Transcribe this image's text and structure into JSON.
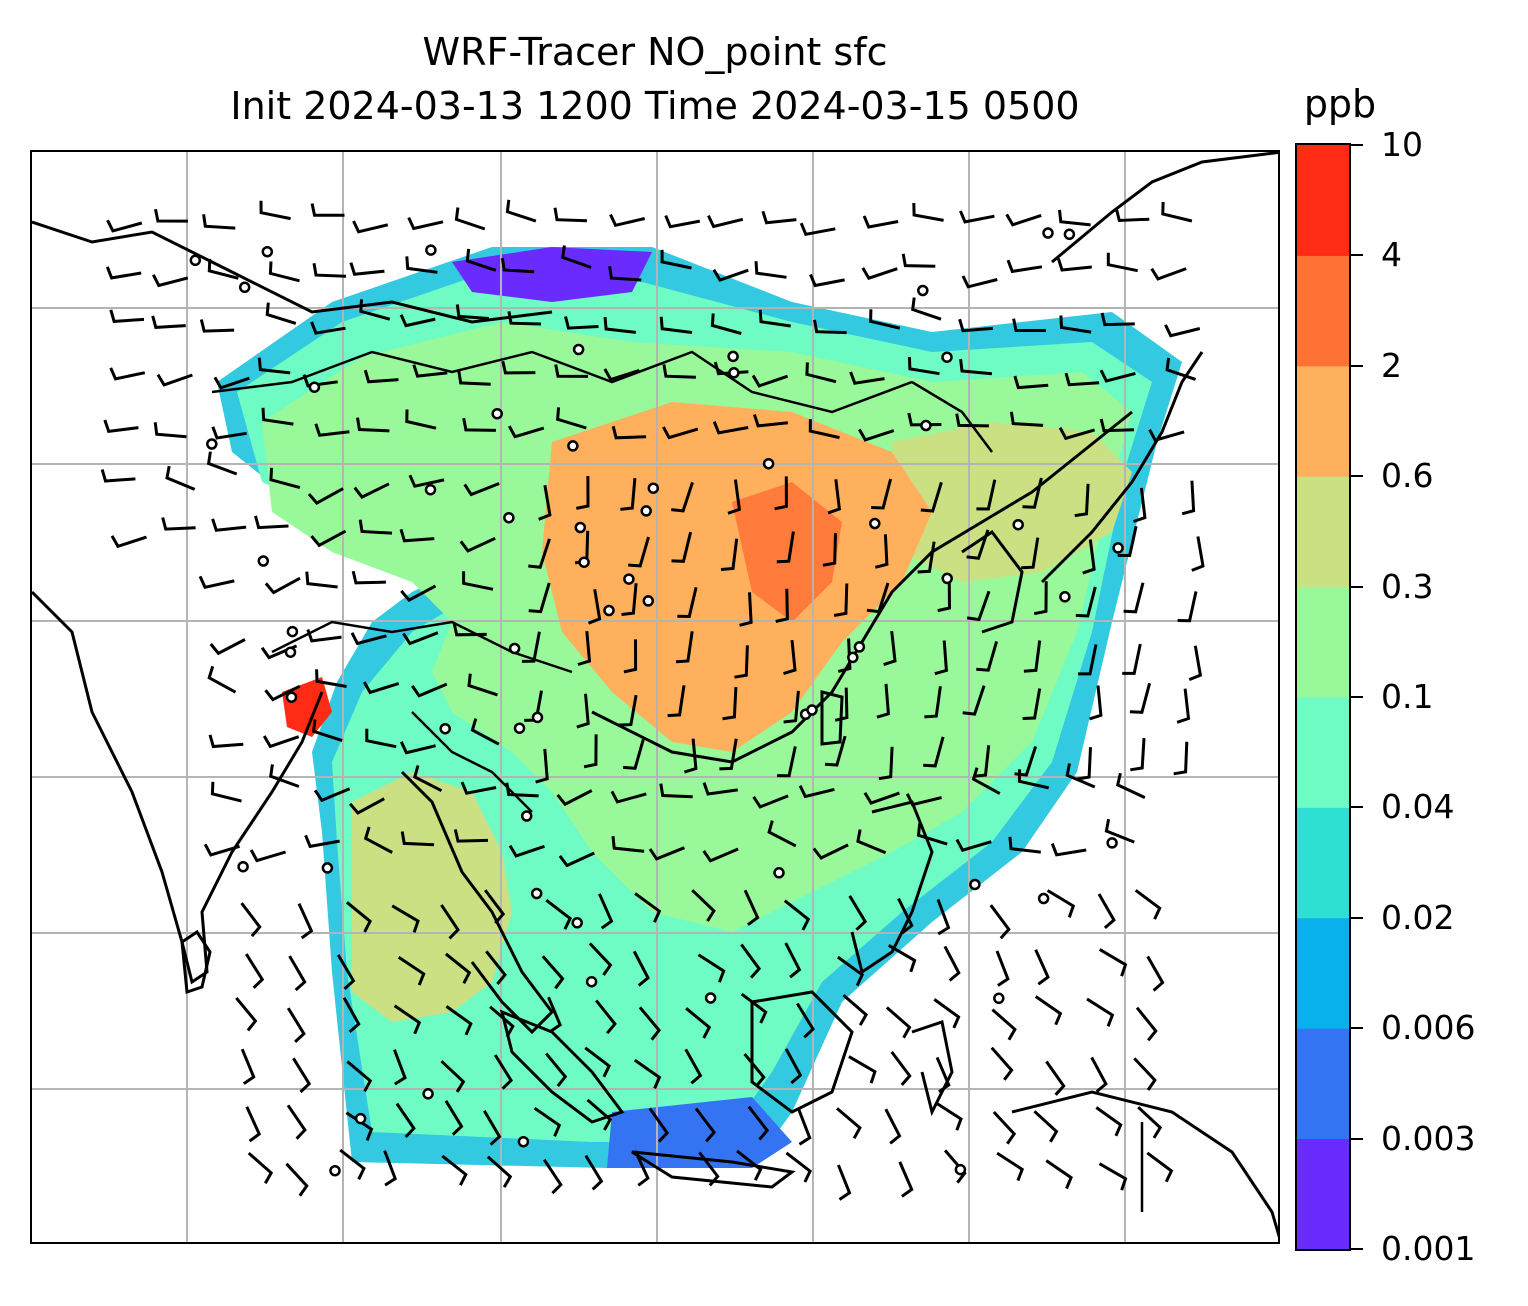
{
  "title": {
    "line1": "WRF-Tracer NO_point sfc",
    "line2": "Init 2024-03-13 1200 Time 2024-03-15 0500"
  },
  "colorbar": {
    "unit": "ppb",
    "ticks": [
      "10",
      "4",
      "2",
      "0.6",
      "0.3",
      "0.1",
      "0.04",
      "0.02",
      "0.006",
      "0.003",
      "0.001"
    ],
    "colors": [
      "#6a2bff",
      "#3473f2",
      "#08b1ec",
      "#2ee0d4",
      "#6ffbc4",
      "#99f89a",
      "#cbe083",
      "#ffb05c",
      "#ff7236",
      "#ff2b14"
    ]
  },
  "map": {
    "grid": true,
    "features": [
      "coastlines",
      "country-borders",
      "wind-barbs",
      "point-sources",
      "tracer-concentration"
    ]
  }
}
